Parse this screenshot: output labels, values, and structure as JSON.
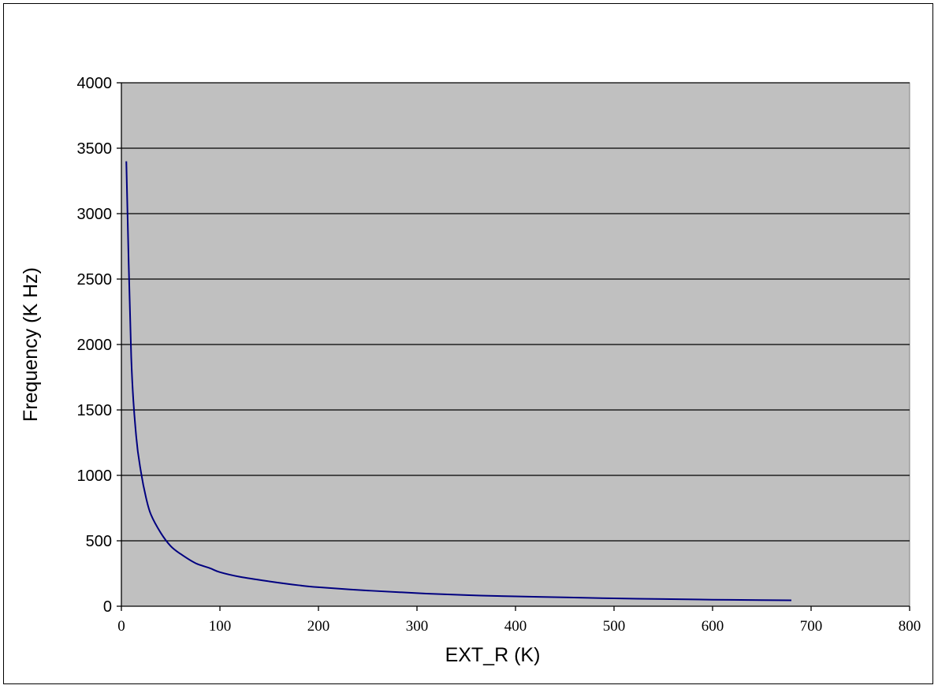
{
  "chart_data": {
    "type": "line",
    "title": "",
    "xlabel": "EXT_R (K)",
    "ylabel": "Frequency (K Hz)",
    "xlim": [
      0,
      800
    ],
    "ylim": [
      0,
      4000
    ],
    "x_ticks": [
      0,
      100,
      200,
      300,
      400,
      500,
      600,
      700,
      800
    ],
    "y_ticks": [
      0,
      500,
      1000,
      1500,
      2000,
      2500,
      3000,
      3500,
      4000
    ],
    "grid": "horizontal",
    "legend": "none",
    "colors": {
      "plot_background": "#C0C0C0",
      "line": "#000080",
      "gridline": "#000000"
    },
    "series": [
      {
        "x": [
          5,
          10,
          15,
          20,
          25,
          30,
          40,
          50,
          60,
          75,
          90,
          100,
          120,
          150,
          180,
          200,
          250,
          300,
          350,
          400,
          450,
          500,
          550,
          600,
          650,
          680
        ],
        "y": [
          3400,
          1900,
          1300,
          1020,
          830,
          700,
          560,
          460,
          400,
          330,
          290,
          260,
          225,
          190,
          160,
          145,
          120,
          100,
          85,
          75,
          68,
          60,
          55,
          50,
          47,
          45
        ]
      }
    ]
  }
}
